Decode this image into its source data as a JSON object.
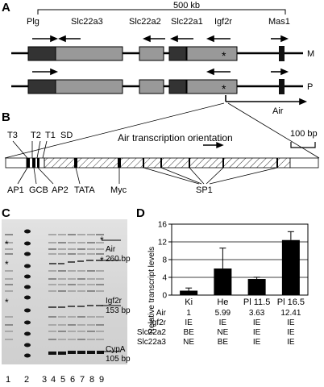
{
  "panels": {
    "a": {
      "letter": "A",
      "scale_label": "500 kb",
      "genes": [
        "Plg",
        "Slc22a3",
        "Slc22a2",
        "Slc22a1",
        "Igf2r",
        "Mas1"
      ],
      "allele_maternal": "M",
      "allele_paternal": "P",
      "air_label": "Air",
      "star": "*"
    },
    "b": {
      "letter": "B",
      "top_labels": [
        "T3",
        "T2",
        "T1",
        "SD"
      ],
      "orientation": "Air transcription orientation",
      "scale_label": "100 bp",
      "bottom_labels": [
        "AP1",
        "GCB",
        "AP2",
        "TATA",
        "Myc",
        "SP1"
      ]
    },
    "c": {
      "letter": "C",
      "band_labels": [
        "Air",
        "260 bp",
        "Igf2r",
        "153 bp",
        "CypA",
        "105 bp"
      ],
      "lane_numbers": [
        "1",
        "2",
        "3",
        "4",
        "5",
        "6",
        "7",
        "8",
        "9"
      ],
      "star": "*"
    },
    "d": {
      "letter": "D",
      "ylabel": "Relative transcript levels",
      "row_labels": [
        "Air",
        "Igf2r",
        "Slc22a2",
        "Slc22a3"
      ],
      "table": [
        [
          "1",
          "5.99",
          "3.63",
          "12.41"
        ],
        [
          "IE",
          "IE",
          "IE",
          "IE"
        ],
        [
          "BE",
          "NE",
          "IE",
          "IE"
        ],
        [
          "NE",
          "BE",
          "IE",
          "IE"
        ]
      ]
    }
  },
  "chart_data": {
    "type": "bar",
    "categories": [
      "Ki",
      "He",
      "Pl 11.5",
      "Pl 16.5"
    ],
    "values": [
      1,
      5.99,
      3.63,
      12.41
    ],
    "errors": [
      0.6,
      4.6,
      0.4,
      1.9
    ],
    "ylabel": "Relative transcript levels",
    "ylim": [
      0,
      16
    ],
    "yticks": [
      0,
      4,
      8,
      12,
      16
    ],
    "grid": true,
    "bar_color": "#000000"
  }
}
